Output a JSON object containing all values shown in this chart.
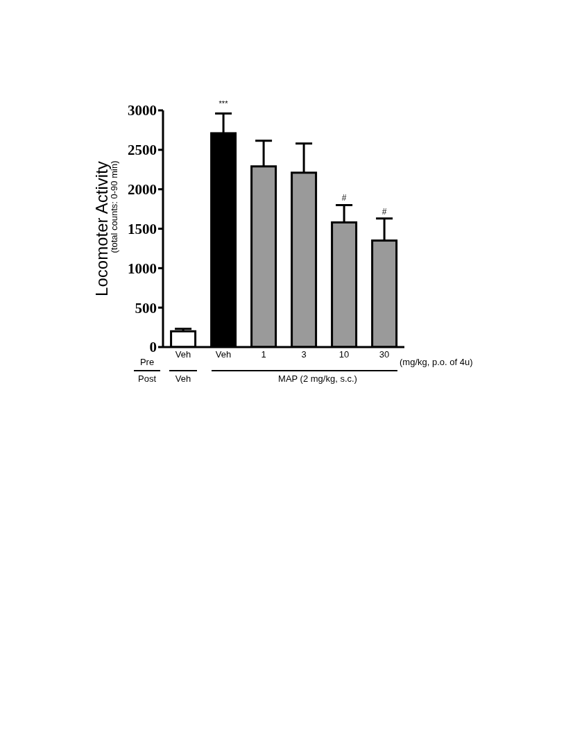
{
  "chart_data": {
    "type": "bar",
    "ylabel": "Locomoter Activity",
    "categories": [
      "Veh",
      "Veh",
      "1",
      "3",
      "10",
      "30"
    ],
    "values": [
      200,
      2710,
      2290,
      2210,
      1580,
      1350
    ],
    "errors": [
      [
        200,
        230
      ],
      [
        2710,
        2960
      ],
      [
        2290,
        2615
      ],
      [
        2210,
        2580
      ],
      [
        1580,
        1800
      ],
      [
        1350,
        1630
      ]
    ],
    "colors": [
      "#ffffff",
      "#000000",
      "#9a9a9a",
      "#9a9a9a",
      "#9a9a9a",
      "#9a9a9a"
    ],
    "ylim": [
      0,
      3000
    ],
    "yticks": [
      0,
      500,
      1000,
      1500,
      2000,
      2500,
      3000
    ],
    "grid": false,
    "annotations": [
      "***",
      {
        "text": "#",
        "x": "10",
        "y": 1800
      },
      {
        "text": "#",
        "x": "30",
        "y": 1630
      },
      "(total counts: 0-90 min)",
      "Pre",
      "Post",
      "Veh",
      "MAP (2 mg/kg, s.c.)",
      "(mg/kg, p.o. of 4u)"
    ]
  }
}
